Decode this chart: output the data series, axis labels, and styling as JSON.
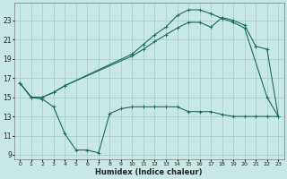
{
  "xlabel": "Humidex (Indice chaleur)",
  "bg_color": "#c8e8e5",
  "grid_color": "#aacfcc",
  "line_color": "#1a6b60",
  "xlim": [
    -0.5,
    23.5
  ],
  "ylim": [
    8.5,
    24.8
  ],
  "xticks": [
    0,
    1,
    2,
    3,
    4,
    5,
    6,
    7,
    8,
    9,
    10,
    11,
    12,
    13,
    14,
    15,
    16,
    17,
    18,
    19,
    20,
    21,
    22,
    23
  ],
  "yticks": [
    9,
    11,
    13,
    15,
    17,
    19,
    21,
    23
  ],
  "line1_x": [
    0,
    1,
    2,
    3,
    4,
    5,
    6,
    7,
    8,
    9,
    10,
    11,
    12,
    13,
    14,
    15,
    16,
    17,
    18,
    19,
    20,
    21,
    22,
    23
  ],
  "line1_y": [
    16.5,
    15.0,
    14.8,
    14.0,
    11.2,
    9.5,
    9.5,
    9.2,
    13.3,
    13.8,
    14.0,
    14.0,
    14.0,
    14.0,
    14.0,
    13.5,
    13.5,
    13.5,
    13.2,
    13.0,
    13.0,
    13.0,
    13.0,
    13.0
  ],
  "line2_x": [
    0,
    1,
    2,
    3,
    4,
    10,
    11,
    12,
    13,
    14,
    15,
    16,
    17,
    18,
    19,
    20,
    22,
    23
  ],
  "line2_y": [
    16.5,
    15.0,
    15.0,
    15.5,
    16.2,
    19.5,
    20.5,
    21.5,
    22.3,
    23.5,
    24.1,
    24.1,
    23.7,
    23.2,
    22.8,
    22.2,
    15.0,
    13.0
  ],
  "line3_x": [
    0,
    1,
    2,
    3,
    4,
    10,
    11,
    12,
    13,
    14,
    15,
    16,
    17,
    18,
    19,
    20,
    21,
    22,
    23
  ],
  "line3_y": [
    16.5,
    15.0,
    15.0,
    15.5,
    16.2,
    19.3,
    20.0,
    20.8,
    21.5,
    22.2,
    22.8,
    22.8,
    22.3,
    23.3,
    23.0,
    22.5,
    20.3,
    20.0,
    13.0
  ]
}
